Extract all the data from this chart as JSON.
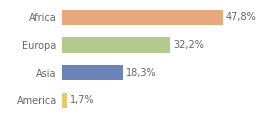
{
  "categories": [
    "Africa",
    "Europa",
    "Asia",
    "America"
  ],
  "values": [
    47.8,
    32.2,
    18.3,
    1.7
  ],
  "labels": [
    "47,8%",
    "32,2%",
    "18,3%",
    "1,7%"
  ],
  "bar_colors": [
    "#e8a97e",
    "#b5c98e",
    "#6b84b8",
    "#e8c96e"
  ],
  "background_color": "#ffffff",
  "xlim": [
    0,
    63
  ],
  "label_fontsize": 7.0,
  "tick_fontsize": 7.0,
  "bar_height": 0.55
}
